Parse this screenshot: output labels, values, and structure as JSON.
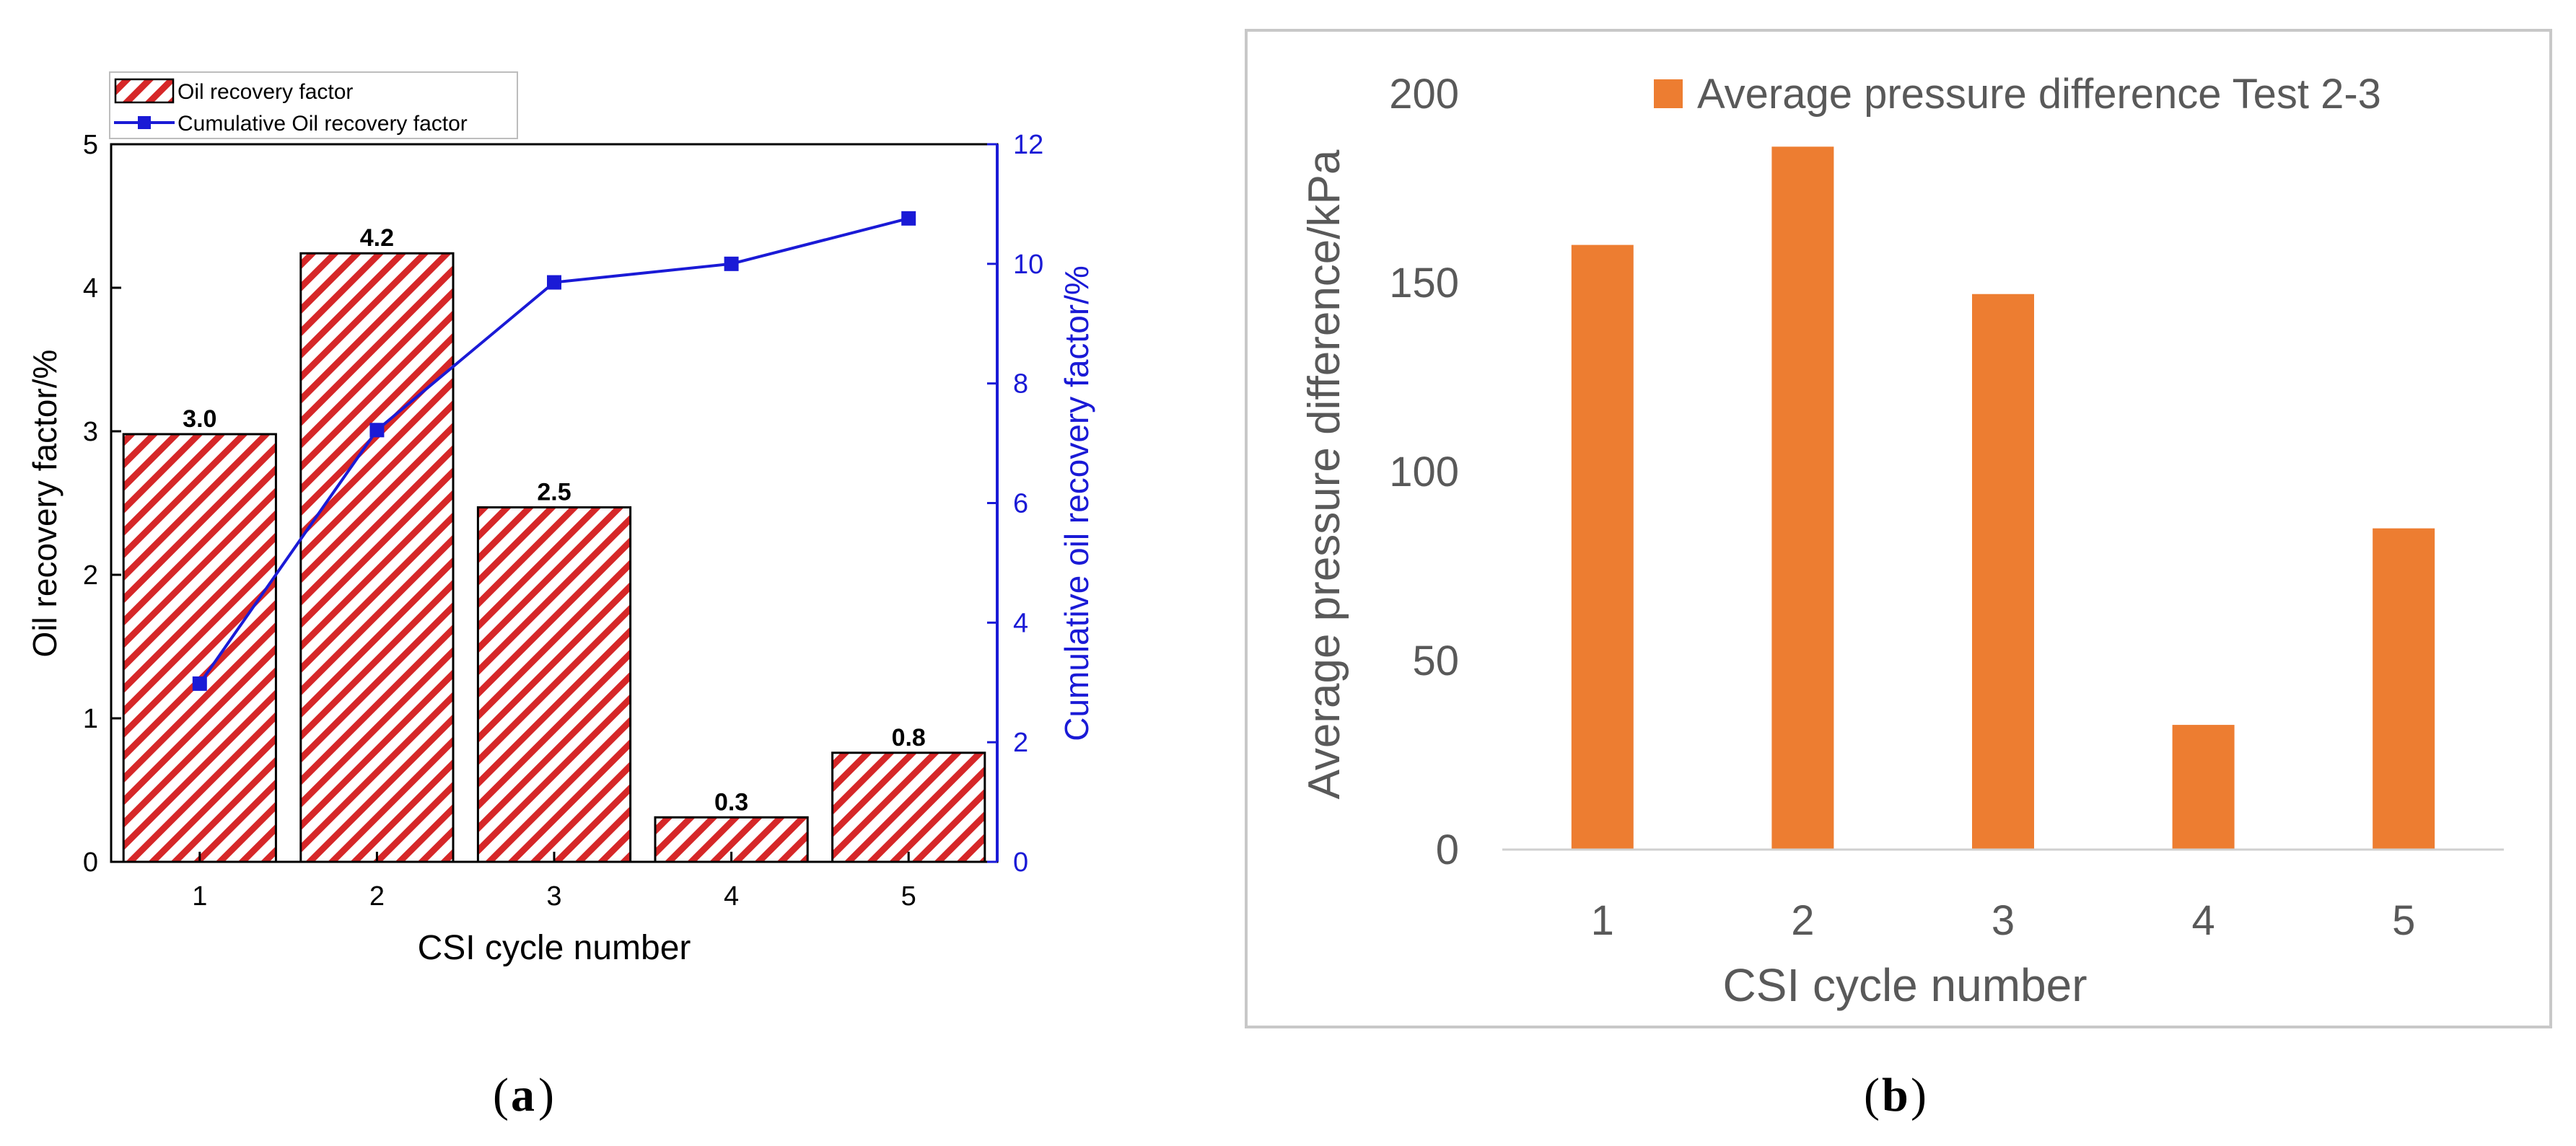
{
  "chart_data": [
    {
      "panel": "a",
      "type": "bar",
      "categories": [
        "1",
        "2",
        "3",
        "4",
        "5"
      ],
      "series": [
        {
          "name": "Oil recovery factor",
          "kind": "bar",
          "axis": "left",
          "values": [
            2.98,
            4.24,
            2.47,
            0.31,
            0.76
          ]
        },
        {
          "name": "Cumulative Oil recovery factor",
          "kind": "line",
          "axis": "right",
          "values": [
            2.98,
            7.22,
            9.69,
            10.0,
            10.76
          ]
        }
      ],
      "data_labels": [
        "3.0",
        "4.2",
        "2.5",
        "0.3",
        "0.8"
      ],
      "xlabel": "CSI cycle number",
      "ylabel": "Oil recovery factor/%",
      "y2label": "Cumulative oil recovery factor/%",
      "ylim": [
        0,
        5
      ],
      "y2lim": [
        0,
        12
      ],
      "yticks": [
        "0",
        "1",
        "2",
        "3",
        "4",
        "5"
      ],
      "y2ticks": [
        "0",
        "2",
        "4",
        "6",
        "8",
        "10",
        "12"
      ],
      "legend": "top-left",
      "grid": false,
      "colors": {
        "bar": "#d62728",
        "line": "#1a1ad6",
        "axis2": "#1a1ad6"
      }
    },
    {
      "panel": "b",
      "type": "bar",
      "categories": [
        "1",
        "2",
        "3",
        "4",
        "5"
      ],
      "series": [
        {
          "name": "Average pressure difference Test 2-3",
          "values": [
            160,
            186,
            147,
            33,
            85
          ]
        }
      ],
      "xlabel": "CSI cycle number",
      "ylabel": "Average pressure difference/kPa",
      "ylim": [
        0,
        200
      ],
      "yticks": [
        "0",
        "50",
        "100",
        "150",
        "200"
      ],
      "legend": "top-right",
      "grid": false,
      "colors": {
        "bar": "#ed7d31"
      }
    }
  ],
  "captions": {
    "a": "a",
    "b": "b",
    "open": "(",
    "close": ")"
  }
}
